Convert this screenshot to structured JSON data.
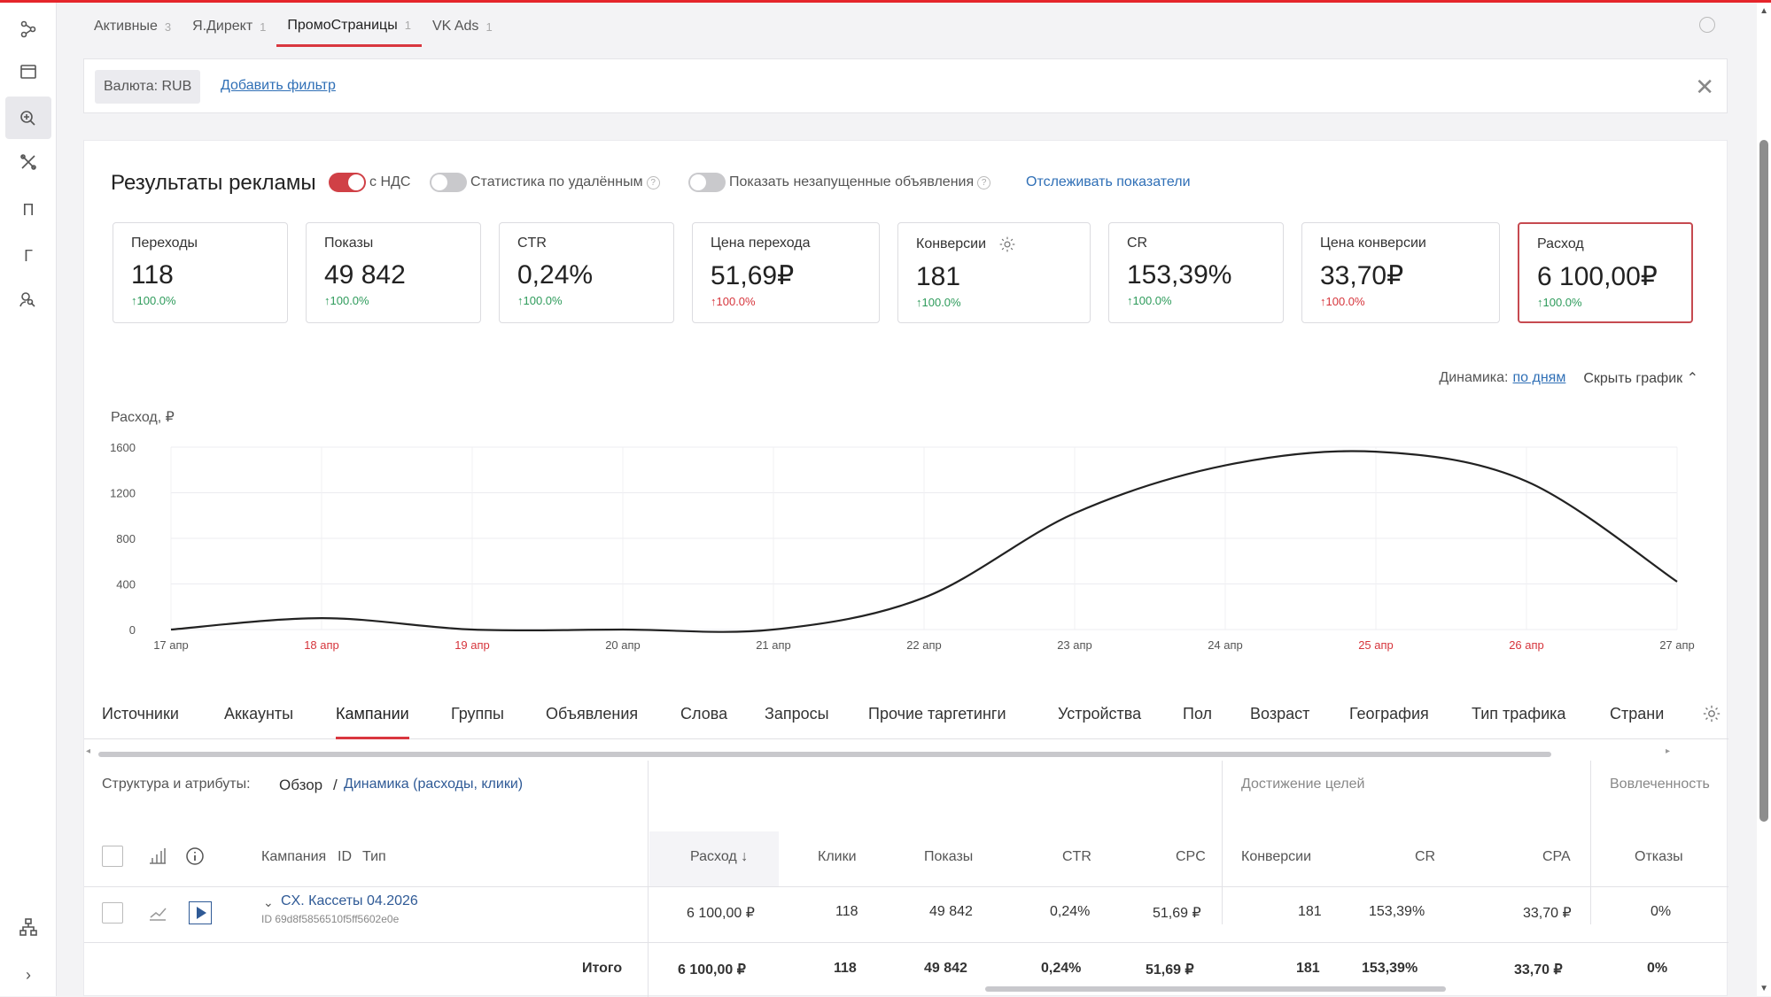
{
  "top_tabs": [
    {
      "label": "Активные",
      "count": "3"
    },
    {
      "label": "Я.Директ",
      "count": "1"
    },
    {
      "label": "ПромоСтраницы",
      "count": "1"
    },
    {
      "label": "VK Ads",
      "count": "1"
    }
  ],
  "sidebar": {
    "letter_items": [
      "П",
      "Г"
    ]
  },
  "filter": {
    "currency": "Валюта: RUB",
    "add_filter": "Добавить фильтр"
  },
  "panel": {
    "title": "Результаты рекламы",
    "toggle_vat": "с НДС",
    "toggle_deleted": "Статистика по удалённым",
    "toggle_unlaunched": "Показать незапущенные объявления",
    "track_link": "Отслеживать показатели"
  },
  "metric_cards": [
    {
      "label": "Переходы",
      "value": "118",
      "delta": "↑100.0%",
      "trend": "up"
    },
    {
      "label": "Показы",
      "value": "49 842",
      "delta": "↑100.0%",
      "trend": "up"
    },
    {
      "label": "CTR",
      "value": "0,24%",
      "delta": "↑100.0%",
      "trend": "up"
    },
    {
      "label": "Цена перехода",
      "value": "51,69₽",
      "delta": "↑100.0%",
      "trend": "down"
    },
    {
      "label": "Конверсии",
      "value": "181",
      "delta": "↑100.0%",
      "trend": "up"
    },
    {
      "label": "CR",
      "value": "153,39%",
      "delta": "↑100.0%",
      "trend": "up"
    },
    {
      "label": "Цена конверсии",
      "value": "33,70₽",
      "delta": "↑100.0%",
      "trend": "down"
    },
    {
      "label": "Расход",
      "value": "6 100,00₽",
      "delta": "↑100.0%",
      "trend": "up"
    }
  ],
  "dynamics": {
    "label": "Динамика:",
    "period": "по дням",
    "hide": "Скрыть график"
  },
  "chart_data": {
    "type": "line",
    "ylabel": "Расход, ₽",
    "ylim": [
      0,
      1600
    ],
    "yticks": [
      "0",
      "400",
      "800",
      "1200",
      "1600"
    ],
    "categories": [
      "17 апр",
      "18 апр",
      "19 апр",
      "20 апр",
      "21 апр",
      "22 апр",
      "23 апр",
      "24 апр",
      "25 апр",
      "26 апр",
      "27 апр"
    ],
    "weekend": [
      false,
      true,
      true,
      false,
      false,
      false,
      false,
      false,
      true,
      true,
      false
    ],
    "series": [
      {
        "values": [
          0,
          100,
          0,
          0,
          0,
          280,
          1020,
          1440,
          1560,
          1300,
          420
        ]
      }
    ],
    "line_color": "#222222",
    "weekend_color": "#d6353c"
  },
  "dim_tabs": [
    "Источники",
    "Аккаунты",
    "Кампании",
    "Группы",
    "Объявления",
    "Слова",
    "Запросы",
    "Прочие таргетинги",
    "Устройства",
    "Пол",
    "Возраст",
    "География",
    "Тип трафика",
    "Страни"
  ],
  "table": {
    "structure_label": "Структура и атрибуты:",
    "view_overview": "Обзор",
    "view_sep": "/",
    "view_dynamics": "Динамика (расходы, клики)",
    "group_goals": "Достижение целей",
    "group_engagement": "Вовлеченность",
    "col_campaign": "Кампания",
    "col_id": "ID",
    "col_type": "Тип",
    "columns": [
      "Расход ↓",
      "Клики",
      "Показы",
      "CTR",
      "CPC",
      "Конверсии",
      "CR",
      "CPA",
      "Отказы"
    ],
    "row": {
      "name": "CX. Кассеты 04.2026",
      "id": "ID 69d8f5856510f5ff5602e0e",
      "values": [
        "6 100,00 ₽",
        "118",
        "49 842",
        "0,24%",
        "51,69 ₽",
        "181",
        "153,39%",
        "33,70 ₽",
        "0%"
      ]
    },
    "total_label": "Итого",
    "totals": [
      "6 100,00 ₽",
      "118",
      "49 842",
      "0,24%",
      "51,69 ₽",
      "181",
      "153,39%",
      "33,70 ₽",
      "0%"
    ]
  }
}
